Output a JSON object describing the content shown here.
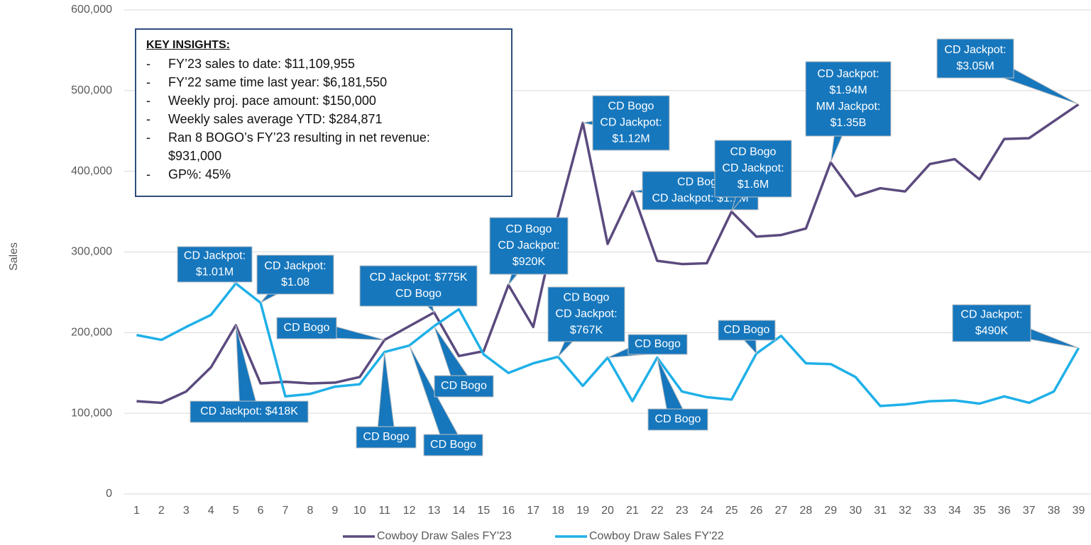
{
  "chart_data": {
    "type": "line",
    "y_label": "Sales",
    "categories": [
      "1",
      "2",
      "3",
      "4",
      "5",
      "6",
      "7",
      "8",
      "9",
      "10",
      "11",
      "12",
      "13",
      "14",
      "15",
      "16",
      "17",
      "18",
      "19",
      "20",
      "21",
      "22",
      "23",
      "24",
      "25",
      "26",
      "27",
      "28",
      "29",
      "30",
      "31",
      "32",
      "33",
      "34",
      "35",
      "36",
      "37",
      "38",
      "39"
    ],
    "series": [
      {
        "name": "Cowboy Draw Sales FY'23",
        "color": "#5b4a7e",
        "values": [
          115000,
          113000,
          127000,
          157000,
          209000,
          137000,
          139000,
          137000,
          138000,
          145000,
          191000,
          208000,
          225000,
          171000,
          177000,
          259000,
          207000,
          345000,
          460000,
          310000,
          375000,
          289000,
          285000,
          286000,
          350000,
          319000,
          321000,
          329000,
          411000,
          369000,
          379000,
          375000,
          409000,
          415000,
          390000,
          440000,
          441000,
          462000,
          483000
        ]
      },
      {
        "name": "Cowboy Draw Sales FY'22",
        "color": "#1fb0e8",
        "values": [
          197000,
          191000,
          207000,
          222000,
          261000,
          237000,
          121000,
          124000,
          133000,
          136000,
          176000,
          184000,
          208000,
          229000,
          173000,
          150000,
          162000,
          170000,
          134000,
          169000,
          115000,
          169000,
          127000,
          120000,
          117000,
          174000,
          196000,
          162000,
          161000,
          145000,
          109000,
          111000,
          115000,
          116000,
          112000,
          121000,
          113000,
          127000,
          181000
        ]
      }
    ],
    "ylim": [
      0,
      600000
    ],
    "yticks": [
      0,
      {
        "value": 100000,
        "label": "100,000"
      },
      {
        "value": 200000,
        "label": "200,000"
      },
      {
        "value": 300000,
        "label": "300,000"
      },
      {
        "value": 400000,
        "label": "400,000"
      },
      {
        "value": 500000,
        "label": "500,000"
      },
      {
        "value": 600000,
        "label": "600,000"
      }
    ],
    "grid": true,
    "legend": "bottom",
    "callout_color": "#1677bd",
    "annotations": [
      [
        "CD Jackpot:",
        "$1.01M"
      ],
      [
        "CD Jackpot:",
        "$1.08"
      ],
      [
        "CD Jackpot: $418K"
      ],
      [
        "CD Bogo"
      ],
      [
        "CD Jackpot: $775K",
        "CD Bogo"
      ],
      [
        "CD Bogo"
      ],
      [
        "CD Bogo"
      ],
      [
        "CD Bogo"
      ],
      [
        "CD Bogo",
        "CD Jackpot:",
        "$920K"
      ],
      [
        "CD Bogo",
        "CD Jackpot:",
        "$767K"
      ],
      [
        "CD Bogo",
        "CD Jackpot:",
        "$1.12M"
      ],
      [
        "CD Bogo"
      ],
      [
        "CD Bogo",
        "CD Jackpot: $1.1M"
      ],
      [
        "CD Bogo"
      ],
      [
        "CD Bogo",
        "CD Jackpot:",
        "$1.6M"
      ],
      [
        "CD Bogo"
      ],
      [
        "CD Jackpot:",
        "$1.94M",
        "MM Jackpot:",
        "$1.35B"
      ],
      [
        "CD Jackpot:",
        "$3.05M"
      ],
      [
        "CD Jackpot:",
        "$490K"
      ]
    ],
    "insights": {
      "title": "KEY INSIGHTS:",
      "items": [
        "FY’23 sales to date: $11,109,955",
        "FY’22 same time last year: $6,181,550",
        "Weekly proj. pace amount: $150,000",
        "Weekly sales average YTD: $284,871",
        "Ran 8 BOGO’s FY’23 resulting in net revenue: $931,000",
        "GP%: 45%"
      ]
    }
  }
}
